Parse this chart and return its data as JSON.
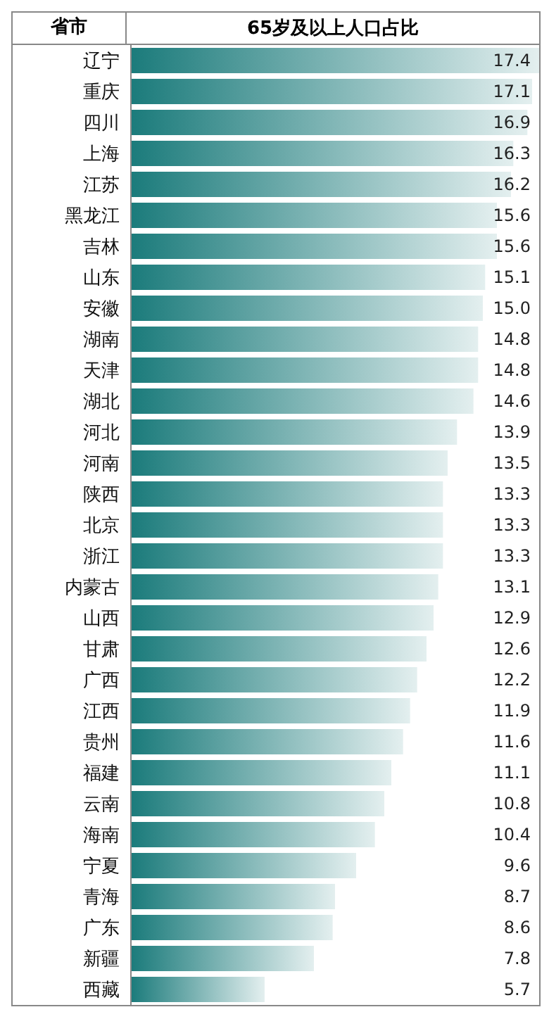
{
  "chart_data": {
    "type": "bar",
    "orientation": "horizontal",
    "title": "65岁及以上人口占比",
    "ylabel": "省市",
    "categories": [
      "辽宁",
      "重庆",
      "四川",
      "上海",
      "江苏",
      "黑龙江",
      "吉林",
      "山东",
      "安徽",
      "湖南",
      "天津",
      "湖北",
      "河北",
      "河南",
      "陕西",
      "北京",
      "浙江",
      "内蒙古",
      "山西",
      "甘肃",
      "广西",
      "江西",
      "贵州",
      "福建",
      "云南",
      "海南",
      "宁夏",
      "青海",
      "广东",
      "新疆",
      "西藏"
    ],
    "values": [
      17.4,
      17.1,
      16.9,
      16.3,
      16.2,
      15.6,
      15.6,
      15.1,
      15.0,
      14.8,
      14.8,
      14.6,
      13.9,
      13.5,
      13.3,
      13.3,
      13.3,
      13.1,
      12.9,
      12.6,
      12.2,
      11.9,
      11.6,
      11.1,
      10.8,
      10.4,
      9.6,
      8.7,
      8.6,
      7.8,
      5.7
    ],
    "color": "#1b7b7b",
    "value_labels": [
      "17.4",
      "17.1",
      "16.9",
      "16.3",
      "16.2",
      "15.6",
      "15.6",
      "15.1",
      "15.0",
      "14.8",
      "14.8",
      "14.6",
      "13.9",
      "13.5",
      "13.3",
      "13.3",
      "13.3",
      "13.1",
      "12.9",
      "12.6",
      "12.2",
      "11.9",
      "11.6",
      "11.1",
      "10.8",
      "10.4",
      "9.6",
      "8.7",
      "8.6",
      "7.8",
      "5.7"
    ]
  }
}
